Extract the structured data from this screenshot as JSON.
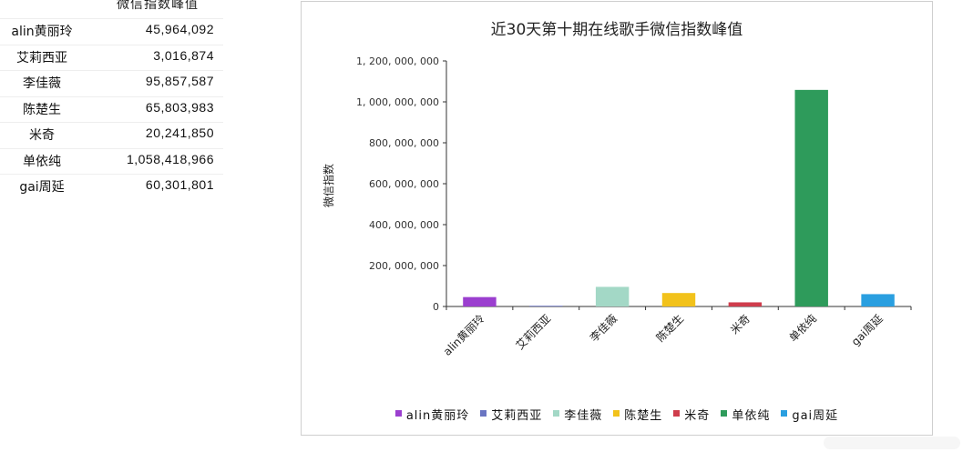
{
  "sheet": {
    "header": "微信指数峰值",
    "rows": [
      {
        "name": "alin黄丽玲",
        "value": "45,964,092"
      },
      {
        "name": "艾莉西亚",
        "value": "3,016,874"
      },
      {
        "name": "李佳薇",
        "value": "95,857,587"
      },
      {
        "name": "陈楚生",
        "value": "65,803,983"
      },
      {
        "name": "米奇",
        "value": "20,241,850"
      },
      {
        "name": "单依纯",
        "value": "1,058,418,966"
      },
      {
        "name": "gai周延",
        "value": "60,301,801"
      }
    ]
  },
  "chart_data": {
    "type": "bar",
    "title": "近30天第十期在线歌手微信指数峰值",
    "ylabel": "微信指数",
    "xlabel": "",
    "ylim": [
      0,
      1200000000
    ],
    "yticks": [
      0,
      200000000,
      400000000,
      600000000,
      800000000,
      1000000000,
      1200000000
    ],
    "ytick_labels": [
      "0",
      "200, 000, 000",
      "400, 000, 000",
      "600, 000, 000",
      "800, 000, 000",
      "1, 000, 000, 000",
      "1, 200, 000, 000"
    ],
    "categories": [
      "alin黄丽玲",
      "艾莉西亚",
      "李佳薇",
      "陈楚生",
      "米奇",
      "单依纯",
      "gai周延"
    ],
    "values": [
      45964092,
      3016874,
      95857587,
      65803983,
      20241850,
      1058418966,
      60301801
    ],
    "colors": [
      "#9b3fcf",
      "#6a75c2",
      "#a3d8c6",
      "#f2c21b",
      "#cf3d4c",
      "#2e9b5b",
      "#2a9fe0"
    ],
    "legend_placement": "bottom",
    "grid": false
  }
}
